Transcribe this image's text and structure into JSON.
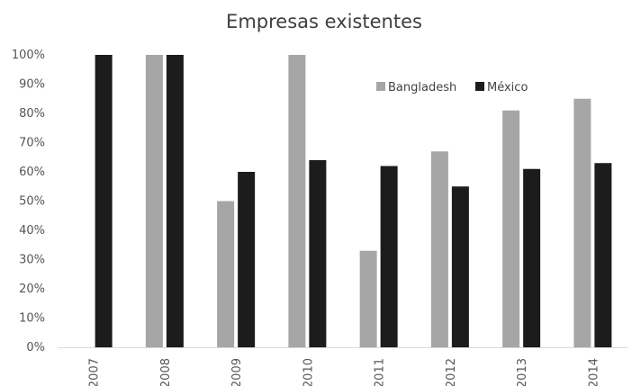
{
  "chart_data": {
    "type": "bar",
    "title": "Empresas existentes",
    "xlabel": "",
    "ylabel": "",
    "categories": [
      "2007",
      "2008",
      "2009",
      "2010",
      "2011",
      "2012",
      "2013",
      "2014"
    ],
    "series": [
      {
        "name": "Bangladesh",
        "color": "#a6a6a6",
        "values": [
          0,
          100,
          50,
          100,
          33,
          67,
          81,
          85
        ]
      },
      {
        "name": "México",
        "color": "#1c1c1c",
        "values": [
          100,
          100,
          60,
          64,
          62,
          55,
          61,
          63
        ]
      }
    ],
    "ylim": [
      0,
      100
    ],
    "yticks": [
      "0%",
      "10%",
      "20%",
      "30%",
      "40%",
      "50%",
      "60%",
      "70%",
      "80%",
      "90%",
      "100%"
    ],
    "grid": false,
    "legend": "top-right"
  }
}
